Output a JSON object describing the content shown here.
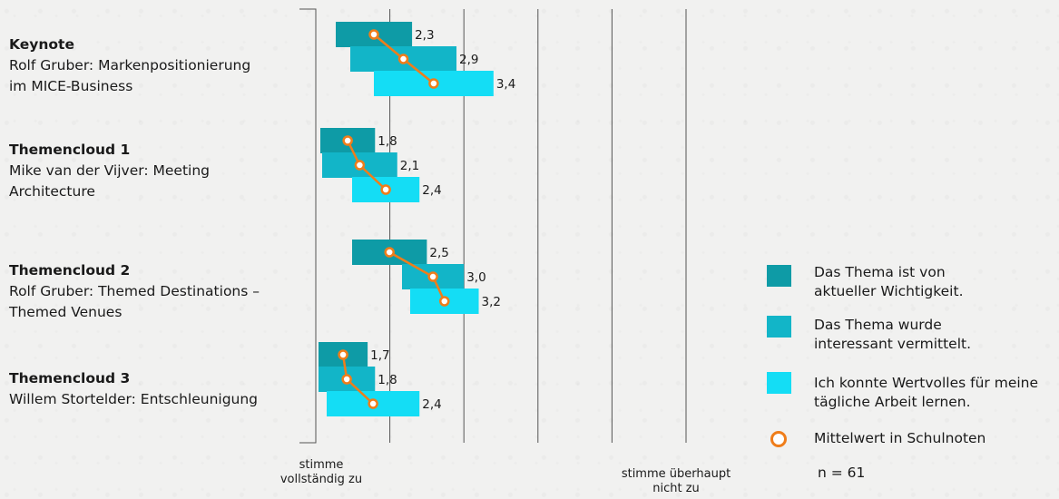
{
  "groups": [
    {
      "title": "Keynote",
      "lines": [
        "Rolf Gruber: Markenpositionierung",
        "im MICE-Business"
      ]
    },
    {
      "title": "Themencloud 1",
      "lines": [
        "Mike van der Vijver: Meeting",
        "Architecture"
      ]
    },
    {
      "title": "Themencloud 2",
      "lines": [
        "Rolf Gruber: Themed Destinations –",
        "Themed Venues"
      ]
    },
    {
      "title": "Themencloud 3",
      "lines": [
        "Willem Stortelder: Entschleunigung",
        ""
      ]
    }
  ],
  "legend": {
    "items": [
      {
        "text": "Das Thema ist von aktueller Wichtigkeit.",
        "color": "#0e9ba6"
      },
      {
        "text": "Das Thema wurde interessant vermittelt.",
        "color": "#12b5c8"
      },
      {
        "text": "Ich konnte Wertvolles für meine tägliche Arbeit lernen.",
        "color": "#14ddf5"
      }
    ],
    "mean_label": "Mittelwert in Schulnoten",
    "n_label": "n = 61"
  },
  "axis": {
    "left_label": "stimme vollständig zu",
    "right_label": "stimme überhaupt nicht zu"
  },
  "chart_data": {
    "type": "bar",
    "orientation": "horizontal",
    "xlim": [
      1,
      6
    ],
    "grid": true,
    "categories": [
      "Keynote",
      "Themencloud 1",
      "Themencloud 2",
      "Themencloud 3"
    ],
    "series": [
      {
        "name": "Das Thema ist von aktueller Wichtigkeit.",
        "color": "#0e9ba6",
        "values": [
          2.3,
          1.8,
          2.5,
          1.7
        ],
        "labels": [
          "2,3",
          "1,8",
          "2,5",
          "1,7"
        ]
      },
      {
        "name": "Das Thema wurde interessant vermittelt.",
        "color": "#12b5c8",
        "values": [
          2.9,
          2.1,
          3.0,
          1.8
        ],
        "labels": [
          "2,9",
          "2,1",
          "3,0",
          "1,8"
        ]
      },
      {
        "name": "Ich konnte Wertvolles für meine tägliche Arbeit lernen.",
        "color": "#14ddf5",
        "values": [
          3.4,
          2.4,
          3.2,
          2.4
        ],
        "labels": [
          "3,4",
          "2,4",
          "3,2",
          "2,4"
        ]
      }
    ],
    "mean_marker": {
      "name": "Mittelwert in Schulnoten",
      "color": "#ef7d1a"
    }
  }
}
